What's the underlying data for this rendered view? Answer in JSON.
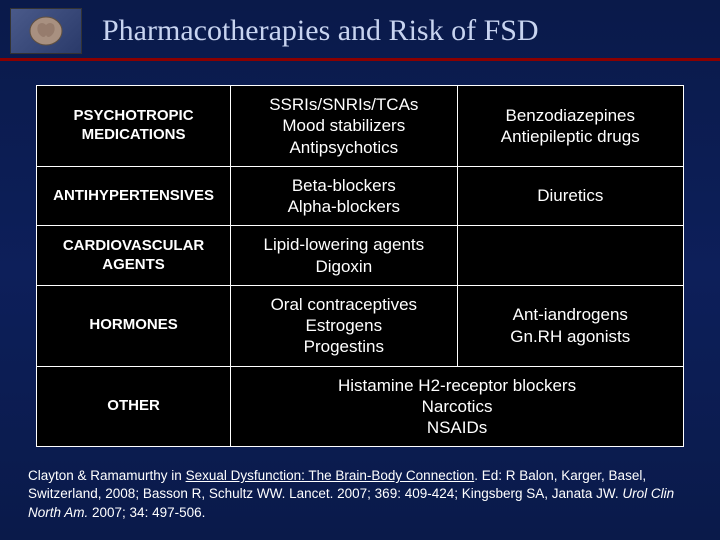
{
  "header": {
    "title": "Pharmacotherapies and Risk of FSD"
  },
  "table": {
    "rows": [
      {
        "category": "PSYCHOTROPIC MEDICATIONS",
        "col2_lines": [
          "SSRIs/SNRIs/TCAs",
          "Mood stabilizers",
          "Antipsychotics"
        ],
        "col3_lines": [
          "Benzodiazepines",
          "Antiepileptic drugs"
        ]
      },
      {
        "category": "ANTIHYPERTENSIVES",
        "col2_lines": [
          "Beta-blockers",
          "Alpha-blockers"
        ],
        "col3_lines": [
          "Diuretics"
        ]
      },
      {
        "category": "CARDIOVASCULAR AGENTS",
        "col2_lines": [
          "Lipid-lowering agents",
          "Digoxin"
        ],
        "col3_lines": []
      },
      {
        "category": "HORMONES",
        "col2_lines": [
          "Oral contraceptives",
          "Estrogens",
          "Progestins"
        ],
        "col3_lines": [
          "Ant-iandrogens",
          "Gn.RH agonists"
        ]
      },
      {
        "category": "OTHER",
        "merged_lines": [
          "Histamine H2-receptor blockers",
          "Narcotics",
          "NSAIDs"
        ]
      }
    ]
  },
  "citation": {
    "prefix": "Clayton & Ramamurthy in ",
    "book": "Sexual Dysfunction: The Brain-Body Connection",
    "mid": ". Ed: R Balon, Karger, Basel, Switzerland, 2008; Basson R, Schultz WW. Lancet. 2007; 369: 409-424; Kingsberg SA, Janata JW. ",
    "journal": "Urol Clin North Am.",
    "suffix": " 2007; 34: 497-506."
  },
  "colors": {
    "title_color": "#c8d4f0",
    "divider_color": "#8b0000",
    "table_bg": "#000000",
    "border_color": "#ffffff",
    "text_color": "#ffffff"
  }
}
